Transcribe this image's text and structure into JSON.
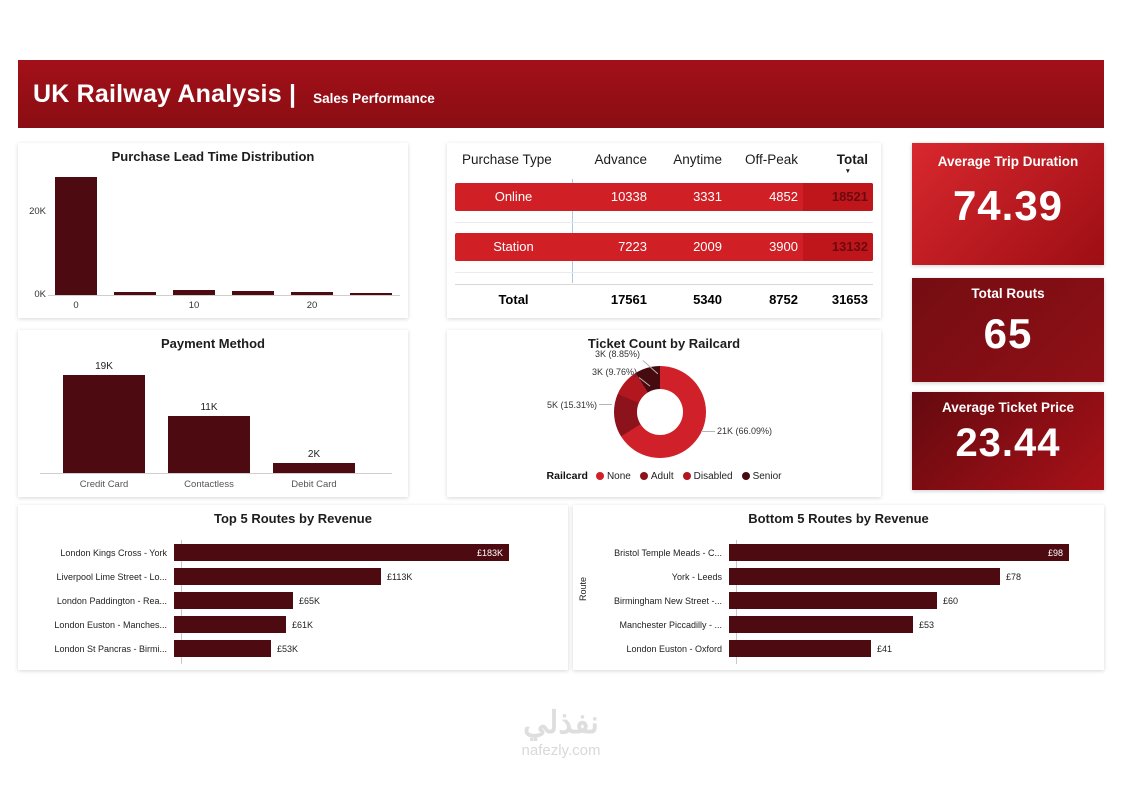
{
  "header": {
    "title": "UK Railway Analysis |",
    "subtitle": "Sales Performance"
  },
  "kpis": [
    {
      "label": "Average Trip Duration",
      "value": "74.39"
    },
    {
      "label": "Total Routs",
      "value": "65"
    },
    {
      "label": "Average Ticket Price",
      "value": "23.44"
    }
  ],
  "watermark": {
    "logo": "نفذلي",
    "site": "nafezly.com"
  },
  "colors": {
    "accent": "#d02025",
    "bar": "#4d0b11",
    "pill_total_bg": "#bf161c",
    "pill_total_text": "#6b0a0e",
    "header_a": "#a31019",
    "header_b": "#8a0d13",
    "kpi1_a": "#d8282e",
    "kpi1_b": "#9d0e14",
    "kpi2_a": "#740d12",
    "kpi2_b": "#8f1016",
    "kpi3_a": "#640a0f",
    "kpi3_b": "#a81118"
  },
  "chart_data": [
    {
      "id": "lead_time",
      "type": "bar",
      "title": "Purchase Lead Time Distribution",
      "categories": [
        0,
        5,
        10,
        15,
        20,
        25
      ],
      "values": [
        28500,
        800,
        1200,
        1000,
        700,
        500
      ],
      "ylim": [
        0,
        28500
      ],
      "yticks": [
        {
          "label": "0K",
          "value": 0
        },
        {
          "label": "20K",
          "value": 20000
        }
      ],
      "xticks": [
        {
          "index": 0,
          "label": "0"
        },
        {
          "index": 2,
          "label": "10"
        },
        {
          "index": 4,
          "label": "20"
        }
      ]
    },
    {
      "id": "purchase_matrix",
      "type": "table",
      "columns": [
        "Purchase Type",
        "Advance",
        "Anytime",
        "Off-Peak",
        "Total"
      ],
      "rows": [
        {
          "label": "Online",
          "values": [
            "10338",
            "3331",
            "4852"
          ],
          "total": "18521"
        },
        {
          "label": "Station",
          "values": [
            "7223",
            "2009",
            "3900"
          ],
          "total": "13132"
        }
      ],
      "total_row": {
        "label": "Total",
        "values": [
          "17561",
          "5340",
          "8752"
        ],
        "total": "31653"
      }
    },
    {
      "id": "payment",
      "type": "bar",
      "title": "Payment Method",
      "categories": [
        "Credit Card",
        "Contactless",
        "Debit Card"
      ],
      "values": [
        19000,
        11000,
        2000
      ],
      "labels": [
        "19K",
        "11K",
        "2K"
      ]
    },
    {
      "id": "railcard",
      "type": "pie",
      "title": "Ticket Count by Railcard",
      "legend_title": "Railcard",
      "segments": [
        {
          "name": "None",
          "value_label": "21K (66.09%)",
          "percent": 66.09,
          "color": "#d0212a"
        },
        {
          "name": "Adult",
          "value_label": "5K (15.31%)",
          "percent": 15.31,
          "color": "#8c121c"
        },
        {
          "name": "Disabled",
          "value_label": "3K (9.76%)",
          "percent": 9.76,
          "color": "#b2161f"
        },
        {
          "name": "Senior",
          "value_label": "3K (8.85%)",
          "percent": 8.85,
          "color": "#470a0f"
        }
      ]
    },
    {
      "id": "top_routes",
      "type": "bar",
      "orientation": "horizontal",
      "title": "Top 5 Routes by Revenue",
      "categories": [
        "London Kings Cross - York",
        "Liverpool Lime Street - Lo...",
        "London Paddington - Rea...",
        "London Euston - Manches...",
        "London St Pancras - Birmi..."
      ],
      "values": [
        183000,
        113000,
        65000,
        61000,
        53000
      ],
      "labels": [
        "£183K",
        "£113K",
        "£65K",
        "£61K",
        "£53K"
      ]
    },
    {
      "id": "bottom_routes",
      "type": "bar",
      "orientation": "horizontal",
      "title": "Bottom 5 Routes by Revenue",
      "ylabel": "Route",
      "categories": [
        "Bristol Temple Meads - C...",
        "York - Leeds",
        "Birmingham New Street -...",
        "Manchester Piccadilly - ...",
        "London Euston - Oxford"
      ],
      "values": [
        98,
        78,
        60,
        53,
        41
      ],
      "labels": [
        "£98",
        "£78",
        "£60",
        "£53",
        "£41"
      ]
    }
  ]
}
